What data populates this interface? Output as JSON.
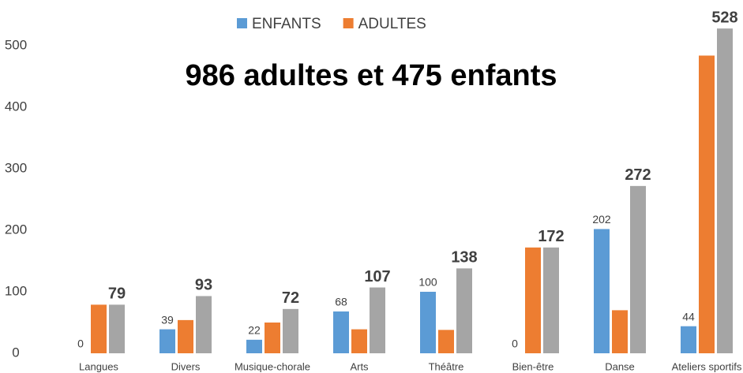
{
  "chart_data": {
    "type": "bar",
    "title": "986 adultes et 475 enfants",
    "categories": [
      "Langues",
      "Divers",
      "Musique-chorale",
      "Arts",
      "Théâtre",
      "Bien-être",
      "Danse",
      "Ateliers sportifs"
    ],
    "series": [
      {
        "name": "ENFANTS",
        "color": "#5b9bd5",
        "values": [
          0,
          39,
          22,
          68,
          100,
          0,
          202,
          44
        ],
        "show_labels": true,
        "bold_labels": false
      },
      {
        "name": "ADULTES",
        "color": "#ed7d31",
        "values": [
          79,
          54,
          50,
          39,
          38,
          172,
          70,
          484
        ],
        "show_labels": false,
        "bold_labels": false
      },
      {
        "color": "#a5a5a5",
        "values": [
          79,
          93,
          72,
          107,
          138,
          172,
          272,
          528
        ],
        "show_labels": true,
        "bold_labels": true
      }
    ],
    "ylim": [
      0,
      570
    ],
    "yticks": [
      0,
      100,
      200,
      300,
      400,
      500
    ],
    "grid": false,
    "legend": "top"
  }
}
